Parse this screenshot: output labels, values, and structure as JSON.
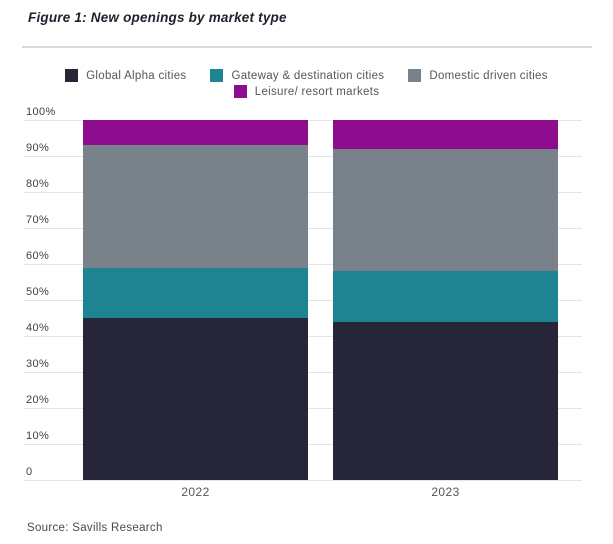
{
  "figure": {
    "title": "Figure 1: New openings by market type",
    "source": "Source: Savills Research"
  },
  "colors": {
    "navy": "#272538",
    "teal": "#1E8491",
    "gray": "#79818B",
    "purple": "#8E0D8E",
    "gridline": "#E4E4E9",
    "tick_text": "#3F3F4A",
    "axis_text": "#55555E",
    "title_text": "#20222E"
  },
  "chart_data": {
    "type": "bar",
    "stacked": true,
    "title": "Figure 1: New openings by market type",
    "categories": [
      "2022",
      "2023"
    ],
    "series": [
      {
        "name": "Global Alpha cities",
        "color": "#272538",
        "values": [
          45,
          44
        ]
      },
      {
        "name": "Gateway & destination cities",
        "color": "#1E8491",
        "values": [
          14,
          14
        ]
      },
      {
        "name": "Domestic driven cities",
        "color": "#79818B",
        "values": [
          34,
          34
        ]
      },
      {
        "name": "Leisure/ resort markets",
        "color": "#8E0D8E",
        "values": [
          7,
          8
        ]
      }
    ],
    "xlabel": "",
    "ylabel": "",
    "ylim": [
      0,
      100
    ],
    "yticks": [
      "100%",
      "90%",
      "80%",
      "70%",
      "60%",
      "50%",
      "40%",
      "30%",
      "20%",
      "10%",
      "0"
    ],
    "grid": true,
    "legend_position": "top"
  }
}
